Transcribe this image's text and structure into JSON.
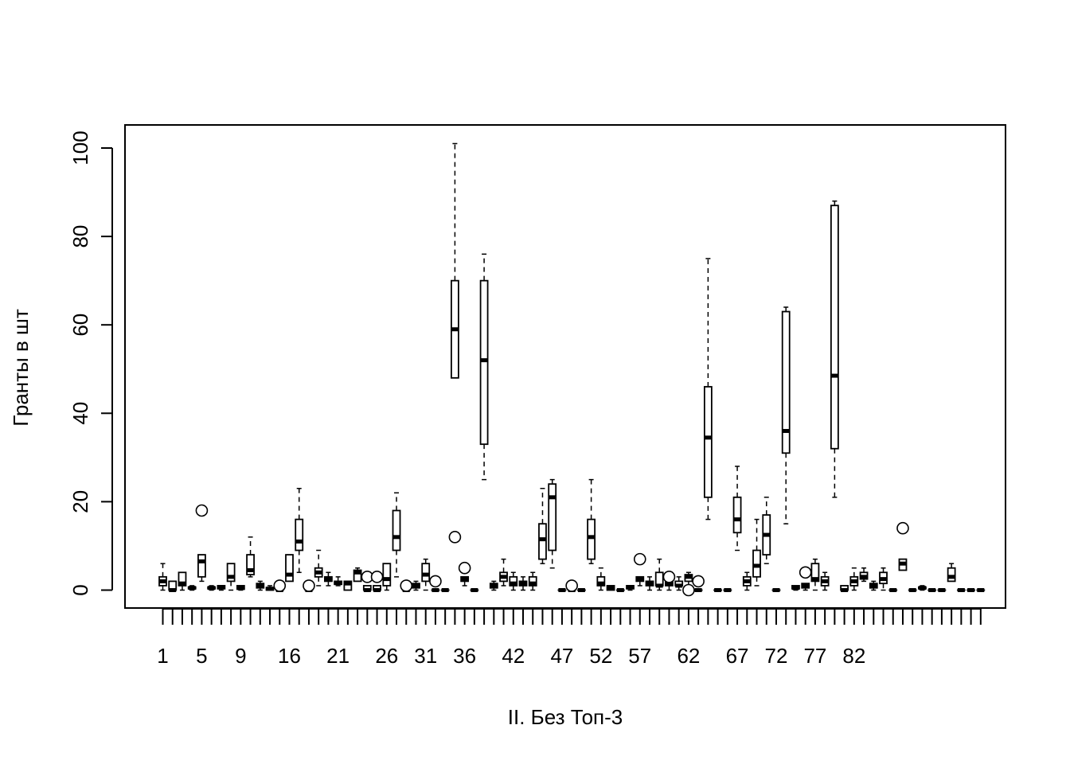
{
  "chart_data": {
    "type": "box",
    "xlabel": "II. Без Топ-3",
    "ylabel": "Гранты в шт",
    "ylim": [
      -4,
      106
    ],
    "yticks": [
      0,
      20,
      40,
      60,
      80,
      100
    ],
    "x_tick_labels_shown": [
      "1",
      "5",
      "9",
      "16",
      "21",
      "26",
      "31",
      "36",
      "42",
      "47",
      "52",
      "57",
      "62",
      "67",
      "72",
      "77",
      "82"
    ],
    "x_tick_label_positions": [
      1,
      5,
      9,
      14,
      19,
      24,
      28,
      32,
      37,
      42,
      46,
      50,
      55,
      60,
      64,
      68,
      72
    ],
    "n_boxes": 85,
    "boxes": [
      {
        "min": 0,
        "q1": 1,
        "median": 2,
        "q3": 3,
        "max": 6,
        "outliers": []
      },
      {
        "min": 0,
        "q1": 0,
        "median": 0,
        "q3": 2,
        "max": 2,
        "outliers": []
      },
      {
        "min": 0,
        "q1": 1,
        "median": 1.5,
        "q3": 4,
        "max": 4,
        "outliers": []
      },
      {
        "min": 0,
        "q1": 0.3,
        "median": 0.5,
        "q3": 0.7,
        "max": 1,
        "outliers": []
      },
      {
        "min": 2,
        "q1": 3,
        "median": 6.5,
        "q3": 8,
        "max": 8,
        "outliers": [
          18
        ]
      },
      {
        "min": 0,
        "q1": 0.3,
        "median": 0.5,
        "q3": 0.7,
        "max": 1,
        "outliers": []
      },
      {
        "min": 0,
        "q1": 0.3,
        "median": 0.7,
        "q3": 1,
        "max": 1,
        "outliers": []
      },
      {
        "min": 0,
        "q1": 2,
        "median": 3,
        "q3": 6,
        "max": 6,
        "outliers": []
      },
      {
        "min": 0,
        "q1": 0.2,
        "median": 0.5,
        "q3": 1,
        "max": 1,
        "outliers": []
      },
      {
        "min": 3,
        "q1": 3.5,
        "median": 4.5,
        "q3": 8,
        "max": 12,
        "outliers": []
      },
      {
        "min": 0,
        "q1": 0.5,
        "median": 1,
        "q3": 1.5,
        "max": 2,
        "outliers": []
      },
      {
        "min": 0,
        "q1": 0,
        "median": 0.3,
        "q3": 0.6,
        "max": 1,
        "outliers": []
      },
      {
        "min": 0,
        "q1": 0,
        "median": 0,
        "q3": 0,
        "max": 0,
        "outliers": [
          1
        ]
      },
      {
        "min": 2,
        "q1": 2,
        "median": 3.5,
        "q3": 8,
        "max": 8,
        "outliers": []
      },
      {
        "min": 4,
        "q1": 9,
        "median": 11,
        "q3": 16,
        "max": 23,
        "outliers": []
      },
      {
        "min": 0,
        "q1": 0,
        "median": 0,
        "q3": 0,
        "max": 0,
        "outliers": [
          1
        ]
      },
      {
        "min": 1,
        "q1": 3,
        "median": 4,
        "q3": 5,
        "max": 9,
        "outliers": []
      },
      {
        "min": 1,
        "q1": 2,
        "median": 2.5,
        "q3": 3,
        "max": 4,
        "outliers": []
      },
      {
        "min": 1,
        "q1": 1.3,
        "median": 1.6,
        "q3": 2,
        "max": 3,
        "outliers": []
      },
      {
        "min": 0,
        "q1": 0,
        "median": 1.5,
        "q3": 2,
        "max": 2,
        "outliers": []
      },
      {
        "min": 2,
        "q1": 2,
        "median": 4,
        "q3": 4.5,
        "max": 5,
        "outliers": []
      },
      {
        "min": 0,
        "q1": 0,
        "median": 0,
        "q3": 1,
        "max": 1,
        "outliers": [
          3
        ]
      },
      {
        "min": 0,
        "q1": 0,
        "median": 0,
        "q3": 1,
        "max": 1,
        "outliers": [
          3
        ]
      },
      {
        "min": 0,
        "q1": 1,
        "median": 2.5,
        "q3": 6,
        "max": 6,
        "outliers": []
      },
      {
        "min": 3,
        "q1": 9,
        "median": 12,
        "q3": 18,
        "max": 22,
        "outliers": []
      },
      {
        "min": 0,
        "q1": 0,
        "median": 0,
        "q3": 0,
        "max": 0,
        "outliers": [
          1
        ]
      },
      {
        "min": 0,
        "q1": 0.5,
        "median": 1,
        "q3": 1.5,
        "max": 2,
        "outliers": []
      },
      {
        "min": 0,
        "q1": 2,
        "median": 3.5,
        "q3": 6,
        "max": 7,
        "outliers": []
      },
      {
        "min": 0,
        "q1": 0,
        "median": 0,
        "q3": 0,
        "max": 0,
        "outliers": [
          2
        ]
      },
      {
        "min": 0,
        "q1": 0,
        "median": 0,
        "q3": 0,
        "max": 0,
        "outliers": []
      },
      {
        "min": 48,
        "q1": 48,
        "median": 59,
        "q3": 70,
        "max": 101,
        "outliers": [
          12
        ]
      },
      {
        "min": 1,
        "q1": 2,
        "median": 2.5,
        "q3": 3,
        "max": 3,
        "outliers": [
          5
        ]
      },
      {
        "min": 0,
        "q1": 0,
        "median": 0,
        "q3": 0,
        "max": 0,
        "outliers": []
      },
      {
        "min": 25,
        "q1": 33,
        "median": 52,
        "q3": 70,
        "max": 76,
        "outliers": []
      },
      {
        "min": 0,
        "q1": 0.5,
        "median": 1,
        "q3": 1.5,
        "max": 2,
        "outliers": []
      },
      {
        "min": 1,
        "q1": 2,
        "median": 3,
        "q3": 4,
        "max": 7,
        "outliers": []
      },
      {
        "min": 0,
        "q1": 1,
        "median": 1.5,
        "q3": 3,
        "max": 4,
        "outliers": []
      },
      {
        "min": 0,
        "q1": 1,
        "median": 1.5,
        "q3": 2,
        "max": 3,
        "outliers": []
      },
      {
        "min": 0,
        "q1": 1,
        "median": 1.5,
        "q3": 3,
        "max": 4,
        "outliers": []
      },
      {
        "min": 6,
        "q1": 7,
        "median": 11.5,
        "q3": 15,
        "max": 23,
        "outliers": []
      },
      {
        "min": 5,
        "q1": 9,
        "median": 21,
        "q3": 24,
        "max": 25,
        "outliers": []
      },
      {
        "min": 0,
        "q1": 0,
        "median": 0,
        "q3": 0,
        "max": 0,
        "outliers": []
      },
      {
        "min": 0,
        "q1": 0,
        "median": 0,
        "q3": 0,
        "max": 0,
        "outliers": [
          1
        ]
      },
      {
        "min": 0,
        "q1": 0,
        "median": 0,
        "q3": 0,
        "max": 0,
        "outliers": []
      },
      {
        "min": 6,
        "q1": 7,
        "median": 12,
        "q3": 16,
        "max": 25,
        "outliers": []
      },
      {
        "min": 0,
        "q1": 1,
        "median": 1.5,
        "q3": 3,
        "max": 5,
        "outliers": []
      },
      {
        "min": 0,
        "q1": 0,
        "median": 0.5,
        "q3": 1,
        "max": 1,
        "outliers": []
      },
      {
        "min": 0,
        "q1": 0,
        "median": 0,
        "q3": 0,
        "max": 0,
        "outliers": []
      },
      {
        "min": 0,
        "q1": 0.3,
        "median": 0.7,
        "q3": 1,
        "max": 1,
        "outliers": []
      },
      {
        "min": 1,
        "q1": 2,
        "median": 2.5,
        "q3": 3,
        "max": 3,
        "outliers": [
          7
        ]
      },
      {
        "min": 0,
        "q1": 1,
        "median": 1.5,
        "q3": 2,
        "max": 3,
        "outliers": []
      },
      {
        "min": 0,
        "q1": 1,
        "median": 1,
        "q3": 4,
        "max": 7,
        "outliers": []
      },
      {
        "min": 0,
        "q1": 1,
        "median": 1.5,
        "q3": 2,
        "max": 2,
        "outliers": [
          3
        ]
      },
      {
        "min": 0,
        "q1": 1,
        "median": 1,
        "q3": 2,
        "max": 3,
        "outliers": []
      },
      {
        "min": 1,
        "q1": 2,
        "median": 3,
        "q3": 3.5,
        "max": 4,
        "outliers": [
          0
        ]
      },
      {
        "min": 0,
        "q1": 0,
        "median": 0,
        "q3": 0,
        "max": 0,
        "outliers": [
          2
        ]
      },
      {
        "min": 16,
        "q1": 21,
        "median": 34.5,
        "q3": 46,
        "max": 75,
        "outliers": []
      },
      {
        "min": 0,
        "q1": 0,
        "median": 0,
        "q3": 0,
        "max": 0,
        "outliers": []
      },
      {
        "min": 0,
        "q1": 0,
        "median": 0,
        "q3": 0,
        "max": 0,
        "outliers": []
      },
      {
        "min": 9,
        "q1": 13,
        "median": 16,
        "q3": 21,
        "max": 28,
        "outliers": []
      },
      {
        "min": 0,
        "q1": 1,
        "median": 2,
        "q3": 3,
        "max": 4,
        "outliers": []
      },
      {
        "min": 1,
        "q1": 3,
        "median": 5.5,
        "q3": 9,
        "max": 16,
        "outliers": []
      },
      {
        "min": 6,
        "q1": 8,
        "median": 12.5,
        "q3": 17,
        "max": 21,
        "outliers": []
      },
      {
        "min": 0,
        "q1": 0,
        "median": 0,
        "q3": 0,
        "max": 0,
        "outliers": []
      },
      {
        "min": 15,
        "q1": 31,
        "median": 36,
        "q3": 63,
        "max": 64,
        "outliers": []
      },
      {
        "min": 0,
        "q1": 0.3,
        "median": 0.5,
        "q3": 1,
        "max": 1,
        "outliers": []
      },
      {
        "min": 0,
        "q1": 0.5,
        "median": 1,
        "q3": 1.5,
        "max": 1.5,
        "outliers": [
          4
        ]
      },
      {
        "min": 0,
        "q1": 2,
        "median": 2.5,
        "q3": 6,
        "max": 7,
        "outliers": []
      },
      {
        "min": 0,
        "q1": 1,
        "median": 2,
        "q3": 3,
        "max": 4,
        "outliers": []
      },
      {
        "min": 21,
        "q1": 32,
        "median": 48.5,
        "q3": 87,
        "max": 88,
        "outliers": []
      },
      {
        "min": 0,
        "q1": 0,
        "median": 0,
        "q3": 1,
        "max": 1,
        "outliers": []
      },
      {
        "min": 0,
        "q1": 1,
        "median": 2,
        "q3": 3,
        "max": 5,
        "outliers": []
      },
      {
        "min": 2,
        "q1": 2.5,
        "median": 3,
        "q3": 4,
        "max": 5,
        "outliers": []
      },
      {
        "min": 0,
        "q1": 0.5,
        "median": 1,
        "q3": 1.5,
        "max": 2,
        "outliers": []
      },
      {
        "min": 0,
        "q1": 1.5,
        "median": 2.5,
        "q3": 4,
        "max": 5,
        "outliers": []
      },
      {
        "min": 0,
        "q1": 0,
        "median": 0,
        "q3": 0,
        "max": 0,
        "outliers": []
      },
      {
        "min": 4.5,
        "q1": 4.5,
        "median": 6,
        "q3": 7,
        "max": 7,
        "outliers": [
          14
        ]
      },
      {
        "min": 0,
        "q1": 0,
        "median": 0,
        "q3": 0,
        "max": 0,
        "outliers": []
      },
      {
        "min": 0,
        "q1": 0.3,
        "median": 0.5,
        "q3": 0.7,
        "max": 1,
        "outliers": []
      },
      {
        "min": 0,
        "q1": 0,
        "median": 0,
        "q3": 0,
        "max": 0,
        "outliers": []
      },
      {
        "min": 0,
        "q1": 0,
        "median": 0,
        "q3": 0,
        "max": 0,
        "outliers": []
      },
      {
        "min": 2,
        "q1": 2,
        "median": 3,
        "q3": 5,
        "max": 6,
        "outliers": []
      },
      {
        "min": 0,
        "q1": 0,
        "median": 0,
        "q3": 0,
        "max": 0,
        "outliers": []
      },
      {
        "min": 0,
        "q1": 0,
        "median": 0,
        "q3": 0,
        "max": 0,
        "outliers": []
      },
      {
        "min": 0,
        "q1": 0,
        "median": 0,
        "q3": 0,
        "max": 0,
        "outliers": []
      }
    ]
  }
}
